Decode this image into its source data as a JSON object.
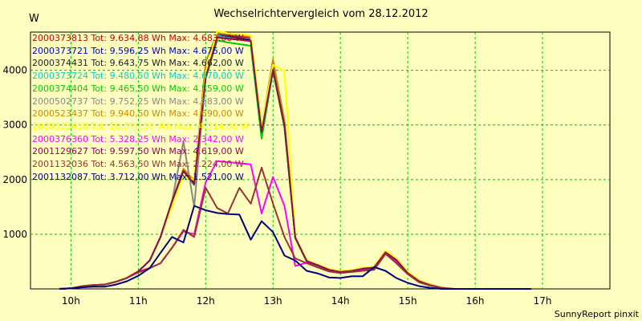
{
  "footer": "SunnyReport pinxit",
  "chart_data": {
    "type": "line",
    "title": "Wechselrichtervergleich vom 28.12.2012",
    "ylabel": "W",
    "xlabel": "",
    "xlim": [
      9.4,
      18.0
    ],
    "ylim": [
      0,
      4700
    ],
    "x_ticks": [
      10,
      11,
      12,
      13,
      14,
      15,
      16,
      17
    ],
    "x_tick_labels": [
      "10h",
      "11h",
      "12h",
      "13h",
      "14h",
      "15h",
      "16h",
      "17h"
    ],
    "y_ticks": [
      1000,
      2000,
      3000,
      4000
    ],
    "y_tick_labels": [
      "1000",
      "2000",
      "3000",
      "4000"
    ],
    "grid": true,
    "legend_position": "top-left",
    "x": [
      9.83,
      10.0,
      10.17,
      10.33,
      10.5,
      10.67,
      10.83,
      11.0,
      11.17,
      11.33,
      11.5,
      11.67,
      11.83,
      12.0,
      12.17,
      12.33,
      12.5,
      12.67,
      12.83,
      13.0,
      13.17,
      13.33,
      13.5,
      13.67,
      13.83,
      14.0,
      14.17,
      14.33,
      14.5,
      14.67,
      14.83,
      15.0,
      15.17,
      15.33,
      15.5,
      15.67,
      15.83,
      16.0,
      16.17,
      16.33,
      16.5,
      16.67,
      16.83
    ],
    "series": [
      {
        "name": "2000373813",
        "label": "2000373813 Tot: 9.634,88 Wh Max: 4.683,00 W",
        "color": "#cc0000",
        "values": [
          0,
          10,
          50,
          70,
          80,
          130,
          200,
          320,
          520,
          950,
          1600,
          2180,
          1950,
          3900,
          4650,
          4650,
          4620,
          4600,
          2900,
          4050,
          3000,
          950,
          520,
          440,
          360,
          320,
          340,
          380,
          400,
          680,
          540,
          300,
          150,
          80,
          20,
          0,
          0,
          0,
          0,
          0,
          0,
          0,
          0
        ]
      },
      {
        "name": "2000373721",
        "label": "2000373721 Tot: 9.596,25 Wh Max: 4.675,00 W",
        "color": "#0000cc",
        "values": [
          0,
          10,
          50,
          70,
          80,
          130,
          200,
          320,
          520,
          950,
          1600,
          2170,
          1930,
          3880,
          4640,
          4620,
          4590,
          4560,
          2880,
          4020,
          2980,
          940,
          510,
          430,
          350,
          310,
          330,
          370,
          390,
          670,
          530,
          290,
          140,
          70,
          20,
          0,
          0,
          0,
          0,
          0,
          0,
          0,
          0
        ]
      },
      {
        "name": "2000374431",
        "label": "2000374431 Tot: 9.643,75 Wh Max: 4.662,00 W",
        "color": "#222222",
        "values": [
          0,
          10,
          50,
          70,
          80,
          130,
          200,
          320,
          520,
          950,
          1600,
          2180,
          1940,
          3890,
          4630,
          4610,
          4580,
          4550,
          2870,
          4030,
          2990,
          945,
          515,
          435,
          355,
          315,
          335,
          375,
          395,
          675,
          535,
          295,
          145,
          75,
          20,
          0,
          0,
          0,
          0,
          0,
          0,
          0,
          0
        ]
      },
      {
        "name": "2000373724",
        "label": "2000373724 Tot: 9.480,50 Wh Max: 4.670,00 W",
        "color": "#00cccc",
        "values": [
          0,
          10,
          50,
          70,
          80,
          130,
          200,
          320,
          520,
          950,
          1600,
          2160,
          1920,
          3870,
          4640,
          4600,
          4560,
          4530,
          2860,
          4010,
          2970,
          935,
          505,
          425,
          345,
          305,
          325,
          365,
          385,
          665,
          525,
          285,
          135,
          70,
          20,
          0,
          0,
          0,
          0,
          0,
          0,
          0,
          0
        ]
      },
      {
        "name": "2000374404",
        "label": "2000374404 Tot: 9.465,50 Wh Max: 4.559,00 W",
        "color": "#00cc00",
        "values": [
          0,
          10,
          50,
          70,
          80,
          130,
          200,
          320,
          520,
          950,
          1600,
          2150,
          1900,
          3850,
          4550,
          4510,
          4480,
          4450,
          2750,
          3990,
          2950,
          930,
          500,
          420,
          340,
          300,
          320,
          360,
          380,
          660,
          520,
          280,
          130,
          65,
          20,
          0,
          0,
          0,
          0,
          0,
          0,
          0,
          0
        ]
      },
      {
        "name": "2000502737",
        "label": "2000502737 Tot: 9.752,25 Wh Max: 4.683,00 W",
        "color": "#888888",
        "values": [
          0,
          10,
          50,
          70,
          80,
          130,
          200,
          320,
          520,
          950,
          1600,
          2700,
          1500,
          3880,
          4680,
          4660,
          4640,
          4620,
          2930,
          4180,
          3080,
          950,
          520,
          440,
          360,
          320,
          340,
          380,
          400,
          690,
          550,
          305,
          155,
          80,
          20,
          0,
          0,
          0,
          0,
          0,
          0,
          0,
          0
        ]
      },
      {
        "name": "2000523437",
        "label": "2000523437 Tot: 9.940,50 Wh Max: 4.690,00 W",
        "color": "#cc8800",
        "values": [
          0,
          10,
          50,
          70,
          80,
          130,
          200,
          320,
          520,
          950,
          1600,
          2200,
          1980,
          4150,
          4690,
          4670,
          4650,
          4620,
          2950,
          4200,
          3080,
          960,
          525,
          445,
          365,
          325,
          345,
          385,
          405,
          700,
          560,
          310,
          160,
          85,
          20,
          0,
          0,
          0,
          0,
          0,
          0,
          0,
          0
        ]
      },
      {
        "name": "2000523458",
        "label": "2000523458 Tot: 10.070,37 Wh Max: 4.714,00 W",
        "color": "#ffff00",
        "values": [
          0,
          10,
          50,
          70,
          80,
          130,
          200,
          320,
          520,
          950,
          1500,
          2050,
          2000,
          3950,
          4714,
          4680,
          4660,
          4640,
          2980,
          4100,
          3980,
          960,
          525,
          445,
          365,
          325,
          345,
          385,
          405,
          700,
          560,
          310,
          160,
          85,
          20,
          0,
          0,
          0,
          0,
          0,
          0,
          0,
          0
        ]
      },
      {
        "name": "2000376360",
        "label": "2000376360 Tot: 5.328,25 Wh Max: 2.342,00 W",
        "color": "#ff00ff",
        "values": [
          0,
          10,
          50,
          70,
          80,
          130,
          200,
          320,
          380,
          470,
          750,
          1050,
          1000,
          1950,
          2340,
          2320,
          2300,
          2280,
          1380,
          2050,
          1520,
          420,
          480,
          430,
          340,
          300,
          320,
          360,
          370,
          660,
          500,
          280,
          130,
          70,
          20,
          0,
          0,
          0,
          0,
          0,
          0,
          0,
          0
        ]
      },
      {
        "name": "2001129627",
        "label": "2001129627 Tot: 9.597,50 Wh Max: 4.619,00 W",
        "color": "#8b0a50",
        "values": [
          0,
          10,
          50,
          70,
          80,
          130,
          200,
          320,
          520,
          950,
          1600,
          2160,
          1920,
          3870,
          4600,
          4580,
          4560,
          4540,
          2870,
          4010,
          2980,
          940,
          510,
          430,
          350,
          310,
          330,
          370,
          390,
          670,
          530,
          290,
          140,
          70,
          20,
          0,
          0,
          0,
          0,
          0,
          0,
          0,
          0
        ]
      },
      {
        "name": "2001132036",
        "label": "2001132036 Tot: 4.563,50 Wh Max: 2.224,00 W",
        "color": "#993333",
        "values": [
          0,
          10,
          50,
          70,
          80,
          130,
          200,
          300,
          380,
          470,
          750,
          1080,
          950,
          1850,
          1480,
          1380,
          1850,
          1560,
          2220,
          1560,
          950,
          560,
          470,
          390,
          320,
          290,
          310,
          330,
          350,
          640,
          470,
          270,
          120,
          60,
          20,
          0,
          0,
          0,
          0,
          0,
          0,
          0,
          0
        ]
      },
      {
        "name": "2001132087",
        "label": "2001132087 Tot: 3.712,00 Wh Max: 1.521,00 W",
        "color": "#000080",
        "values": [
          0,
          10,
          30,
          40,
          40,
          80,
          140,
          240,
          380,
          660,
          950,
          850,
          1520,
          1440,
          1390,
          1370,
          1360,
          900,
          1240,
          1040,
          610,
          520,
          330,
          280,
          210,
          200,
          230,
          230,
          400,
          330,
          200,
          110,
          50,
          20,
          0,
          0,
          0,
          0,
          0,
          0,
          0,
          0,
          0
        ]
      }
    ]
  }
}
